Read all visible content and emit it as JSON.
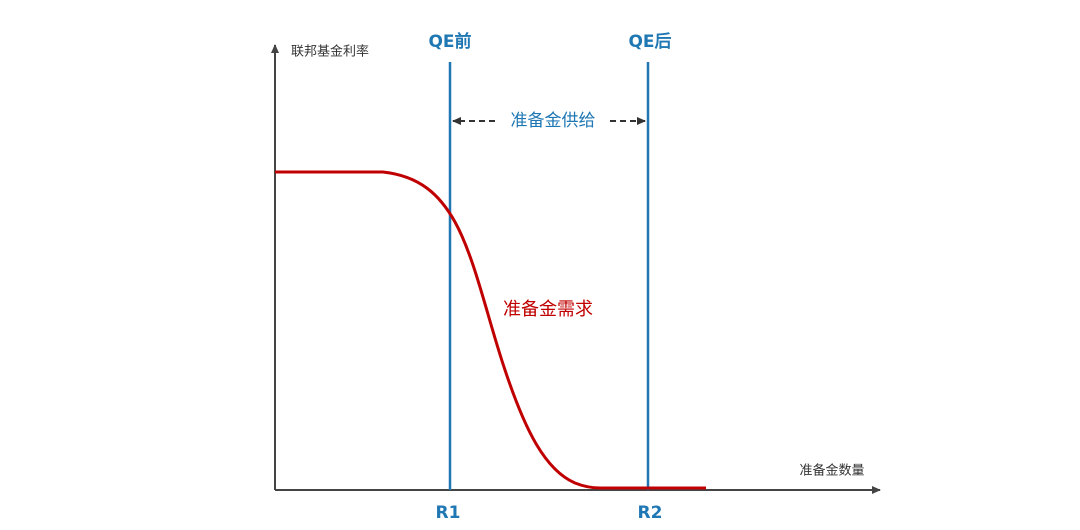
{
  "axes": {
    "y_label": "联邦基金利率",
    "x_label": "准备金数量"
  },
  "lines": [
    {
      "label": "QE前",
      "tick": "R1"
    },
    {
      "label": "QE后",
      "tick": "R2"
    }
  ],
  "supply_label": "准备金供给",
  "demand_label": "准备金需求"
}
